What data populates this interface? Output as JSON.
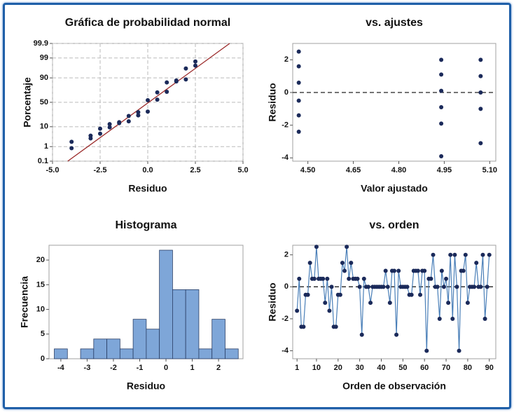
{
  "chart_data": [
    {
      "type": "probability",
      "title": "Gráfica de probabilidad normal",
      "xlabel": "Residuo",
      "ylabel": "Porcentaje",
      "xlim": [
        -5,
        5
      ],
      "xticks": [
        {
          "value": -5,
          "label": "-5.0"
        },
        -2.5,
        {
          "value": 0,
          "label": "0.0"
        },
        2.5,
        {
          "value": 5,
          "label": "5.0"
        }
      ],
      "ylim": [
        0.1,
        99.9
      ],
      "yticks": [
        0.1,
        1,
        10,
        50,
        90,
        99,
        99.9
      ],
      "yscale": "probability",
      "grid": true,
      "color": "#1b2a5a",
      "fit_color": "#9b2a2a",
      "x": [
        -4,
        -4,
        -3,
        -3,
        -2.5,
        -2.5,
        -2,
        -2,
        -1.5,
        -1.5,
        -1,
        -1,
        -0.5,
        -0.5,
        0,
        0,
        0.5,
        0.5,
        1,
        1,
        1.5,
        1.5,
        2,
        2,
        2.5,
        2.5
      ],
      "values": [
        0.8,
        1.9,
        2.9,
        4.0,
        5.0,
        8.3,
        9.4,
        12.6,
        13.7,
        14.8,
        15.9,
        23.6,
        24.7,
        30.2,
        31.3,
        54.4,
        55.5,
        69.8,
        70.9,
        85.2,
        86.3,
        87.4,
        88.5,
        96.2,
        97.3,
        98.4
      ],
      "fit_line": {
        "x": [
          -4.2,
          4.3
        ],
        "y": [
          0.1,
          99.9
        ]
      }
    },
    {
      "type": "scatter",
      "title": "vs. ajustes",
      "xlabel": "Valor ajustado",
      "ylabel": "Residuo",
      "xlim": [
        4.45,
        5.12
      ],
      "xticks": [
        {
          "value": 4.5,
          "label": "4.50"
        },
        4.65,
        {
          "value": 4.8,
          "label": "4.80"
        },
        4.95,
        {
          "value": 5.1,
          "label": "5.10"
        }
      ],
      "ylim": [
        -4.2,
        3
      ],
      "yticks": [
        -4,
        -2,
        0,
        2
      ],
      "grid": false,
      "hline": 0,
      "color": "#1b2a5a",
      "x": [
        4.47,
        4.47,
        4.47,
        4.47,
        4.47,
        4.47,
        4.94,
        4.94,
        4.94,
        4.94,
        4.94,
        4.94,
        5.07,
        5.07,
        5.07,
        5.07,
        5.07
      ],
      "values": [
        2.5,
        1.6,
        0.6,
        -0.5,
        -1.4,
        -2.4,
        2.0,
        1.1,
        0.1,
        -0.9,
        -1.9,
        -3.9,
        2.0,
        1.0,
        0,
        -1.0,
        -3.1
      ]
    },
    {
      "type": "histogram",
      "title": "Histograma",
      "xlabel": "Residuo",
      "ylabel": "Frecuencia",
      "xlim": [
        -4.45,
        2.93
      ],
      "xticks": [
        -4,
        -3,
        -2,
        -1,
        0,
        1,
        2
      ],
      "ylim": [
        0,
        23
      ],
      "yticks": [
        0,
        5,
        10,
        15,
        20
      ],
      "grid": false,
      "color": "#7ea6d8",
      "bins": [
        -4.25,
        -3.75,
        -3.25,
        -2.75,
        -2.25,
        -1.75,
        -1.25,
        -0.75,
        -0.25,
        0.25,
        0.75,
        1.25,
        1.75,
        2.25,
        2.75
      ],
      "values": [
        2,
        0,
        2,
        4,
        4,
        2,
        8,
        6,
        22,
        14,
        14,
        2,
        8,
        2
      ]
    },
    {
      "type": "line",
      "title": "vs. orden",
      "xlabel": "Orden de observación",
      "ylabel": "Residuo",
      "xlim": [
        -1,
        93
      ],
      "xticks": [
        1,
        10,
        20,
        30,
        40,
        50,
        60,
        70,
        80,
        90
      ],
      "ylim": [
        -4.5,
        2.6
      ],
      "yticks": [
        -4,
        -2,
        0,
        2
      ],
      "grid": false,
      "hline": 0,
      "color": "#1b2a5a",
      "line_color": "#4a7fb8",
      "x": [
        1,
        2,
        3,
        4,
        5,
        6,
        7,
        8,
        9,
        10,
        11,
        12,
        13,
        14,
        15,
        16,
        17,
        18,
        19,
        20,
        21,
        22,
        23,
        24,
        25,
        26,
        27,
        28,
        29,
        30,
        31,
        32,
        33,
        34,
        35,
        36,
        37,
        38,
        39,
        40,
        41,
        42,
        43,
        44,
        45,
        46,
        47,
        48,
        49,
        50,
        51,
        52,
        53,
        54,
        55,
        56,
        57,
        58,
        59,
        60,
        61,
        62,
        63,
        64,
        65,
        66,
        67,
        68,
        69,
        70,
        71,
        72,
        73,
        74,
        75,
        76,
        77,
        78,
        79,
        80,
        81,
        82,
        83,
        84,
        85,
        86,
        87,
        88,
        89,
        90
      ],
      "values": [
        -1.5,
        0.5,
        -2.5,
        -2.5,
        -0.5,
        -0.5,
        1.5,
        0.5,
        0.5,
        2.5,
        0.5,
        0.5,
        0.5,
        -1,
        0.5,
        -1.5,
        0,
        -2.5,
        -2.5,
        -0.5,
        -0.5,
        1.5,
        1,
        2.5,
        0.5,
        1.5,
        0.5,
        0.5,
        0.5,
        0,
        -3,
        0.5,
        0,
        0,
        -1,
        0,
        0,
        0,
        0,
        0,
        0,
        1,
        0,
        -1,
        1,
        1,
        -3,
        1,
        0,
        0,
        0,
        0,
        -0.5,
        -0.5,
        1,
        1,
        1,
        -0.5,
        1,
        1,
        -4,
        0.5,
        0.5,
        2,
        0,
        0,
        -2,
        1,
        0,
        0.5,
        -1,
        2,
        -2,
        2,
        0,
        -4,
        1,
        1,
        2,
        -1,
        0,
        0,
        0,
        1.5,
        0,
        0,
        2,
        -2,
        0,
        2
      ]
    }
  ]
}
